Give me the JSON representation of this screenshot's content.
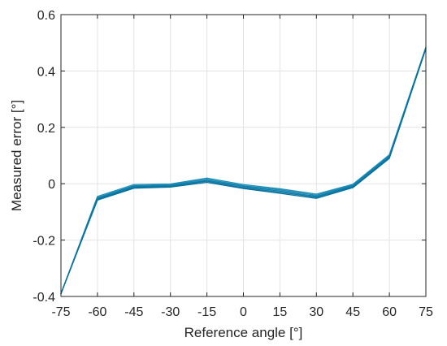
{
  "chart_data": {
    "type": "line",
    "xlabel": "Reference angle [°]",
    "ylabel": "Measured error [°]",
    "xlim": [
      -75,
      75
    ],
    "ylim": [
      -0.4,
      0.6
    ],
    "xticks": [
      -75,
      -60,
      -45,
      -30,
      -15,
      0,
      15,
      30,
      45,
      60,
      75
    ],
    "yticks": [
      -0.4,
      -0.2,
      0,
      0.2,
      0.4,
      0.6
    ],
    "xtick_labels": [
      "-75",
      "-60",
      "-45",
      "-30",
      "-15",
      "0",
      "15",
      "30",
      "45",
      "60",
      "75"
    ],
    "ytick_labels": [
      "-0.4",
      "-0.2",
      "0",
      "0.2",
      "0.4",
      "0.6"
    ],
    "grid": true,
    "x": [
      -75,
      -60,
      -45,
      -30,
      -15,
      0,
      15,
      30,
      45,
      60,
      75
    ],
    "series": [
      {
        "values": [
          -0.39,
          -0.045,
          -0.003,
          -0.001,
          0.02,
          -0.003,
          -0.018,
          -0.037,
          -0.002,
          0.103,
          0.485
        ]
      },
      {
        "values": [
          -0.39,
          -0.049,
          -0.007,
          -0.004,
          0.016,
          -0.007,
          -0.022,
          -0.041,
          -0.005,
          0.099,
          0.483
        ]
      },
      {
        "values": [
          -0.39,
          -0.052,
          -0.01,
          -0.007,
          0.012,
          -0.01,
          -0.026,
          -0.045,
          -0.008,
          0.096,
          0.482
        ]
      },
      {
        "values": [
          -0.39,
          -0.055,
          -0.013,
          -0.009,
          0.009,
          -0.014,
          -0.03,
          -0.048,
          -0.011,
          0.093,
          0.48
        ]
      },
      {
        "values": [
          -0.39,
          -0.058,
          -0.016,
          -0.012,
          0.005,
          -0.017,
          -0.034,
          -0.052,
          -0.014,
          0.09,
          0.479
        ]
      }
    ],
    "series_colors": [
      "#1f8fb8",
      "#1687b1",
      "#0e7fab",
      "#0b77a4",
      "#086f9c"
    ]
  }
}
